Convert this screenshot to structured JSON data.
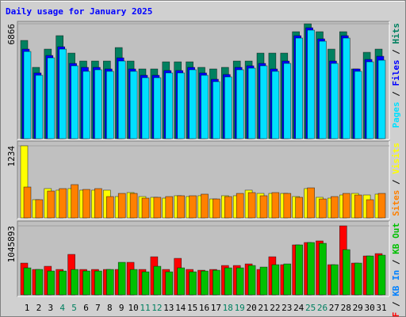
{
  "chart_data": [
    {
      "type": "bar",
      "title": "Daily usage for January 2025",
      "categories": [
        "1",
        "2",
        "3",
        "4",
        "5",
        "6",
        "7",
        "8",
        "9",
        "10",
        "11",
        "12",
        "13",
        "14",
        "15",
        "16",
        "17",
        "18",
        "19",
        "20",
        "21",
        "22",
        "23",
        "24",
        "25",
        "26",
        "27",
        "28",
        "29",
        "30",
        "31"
      ],
      "category_colors": [
        "#000000",
        "#000000",
        "#000000",
        "#008060",
        "#008060",
        "#000000",
        "#000000",
        "#000000",
        "#000000",
        "#000000",
        "#008060",
        "#008060",
        "#000000",
        "#000000",
        "#000000",
        "#000000",
        "#000000",
        "#008060",
        "#008060",
        "#000000",
        "#000000",
        "#000000",
        "#000000",
        "#000000",
        "#008060",
        "#008060",
        "#000000",
        "#000000",
        "#000000",
        "#000000",
        "#000000"
      ],
      "ylim": [
        0,
        6866
      ],
      "yticks": [
        6866
      ],
      "legend_separator": " / ",
      "legend_reversed": true,
      "series": [
        {
          "name": "Pages",
          "color": "#00e0ff",
          "values": [
            5209,
            3788,
            4830,
            5351,
            4356,
            4025,
            4119,
            4025,
            4640,
            4025,
            3646,
            3646,
            3930,
            3930,
            4119,
            3788,
            3409,
            3693,
            4119,
            4214,
            4356,
            4025,
            4498,
            6013,
            6487,
            5824,
            4498,
            6013,
            4025,
            4593,
            4688
          ]
        },
        {
          "name": "Files",
          "color": "#0000ff",
          "values": [
            5351,
            3930,
            4972,
            5493,
            4498,
            4261,
            4261,
            4167,
            4830,
            4167,
            3788,
            3788,
            4072,
            4072,
            4261,
            3930,
            3551,
            3835,
            4261,
            4356,
            4498,
            4167,
            4640,
            6155,
            6629,
            5966,
            4640,
            6155,
            4167,
            4735,
            4924
          ]
        },
        {
          "name": "Hits",
          "color": "#008060",
          "values": [
            5871,
            4262,
            5351,
            6156,
            5114,
            4640,
            4640,
            4640,
            5445,
            4640,
            4167,
            4167,
            4593,
            4593,
            4593,
            4262,
            4167,
            4262,
            4640,
            4640,
            5114,
            5114,
            5114,
            6392,
            6866,
            6392,
            5351,
            6392,
            4167,
            5161,
            5351
          ]
        }
      ]
    },
    {
      "type": "bar",
      "ylim": [
        0,
        1234
      ],
      "yticks": [
        1234
      ],
      "legend_separator": " / ",
      "legend_reversed": true,
      "series": [
        {
          "name": "Sites",
          "color": "#ff8000",
          "values": [
            529,
            312,
            461,
            502,
            570,
            488,
            502,
            366,
            420,
            420,
            339,
            353,
            366,
            380,
            380,
            407,
            325,
            366,
            420,
            434,
            380,
            434,
            420,
            353,
            515,
            325,
            366,
            420,
            393,
            312,
            420
          ]
        },
        {
          "name": "Visits",
          "color": "#ffff00",
          "values": [
            1234,
            312,
            502,
            475,
            502,
            475,
            475,
            475,
            366,
            434,
            366,
            353,
            339,
            380,
            366,
            380,
            325,
            380,
            380,
            475,
            420,
            420,
            420,
            366,
            502,
            353,
            339,
            393,
            420,
            393,
            407
          ]
        }
      ]
    },
    {
      "type": "bar",
      "ylim": [
        0,
        1045893
      ],
      "yticks": [
        1045893
      ],
      "legend_separator": " / ",
      "legend_reversed": false,
      "series": [
        {
          "name": "KB F",
          "color": "#ff0000",
          "values": [
            480880,
            384704,
            432792,
            384704,
            613122,
            384704,
            384704,
            384704,
            384704,
            492902,
            384704,
            577056,
            384704,
            553012,
            384704,
            372682,
            384704,
            444814,
            444814,
            468858,
            384704,
            577056,
            456836,
            757386,
            793452,
            817496,
            456836,
            1045893,
            480880,
            589078,
            625144
          ]
        },
        {
          "name": "KB In",
          "color": "#0080ff",
          "values": [
            null,
            null,
            null,
            null,
            null,
            null,
            null,
            null,
            null,
            null,
            null,
            null,
            null,
            null,
            null,
            null,
            null,
            null,
            null,
            null,
            null,
            null,
            null,
            null,
            null,
            null,
            null,
            null,
            null,
            null,
            null
          ]
        },
        {
          "name": "KB Out",
          "color": "#00c000",
          "values": [
            408748,
            384704,
            360660,
            360660,
            384704,
            360660,
            360660,
            384704,
            492902,
            384704,
            348638,
            432792,
            348638,
            408748,
            348638,
            360660,
            372682,
            408748,
            408748,
            444814,
            420770,
            456836,
            468858,
            757386,
            793452,
            781430,
            456836,
            685254,
            480880,
            589078,
            601100
          ]
        }
      ]
    }
  ]
}
